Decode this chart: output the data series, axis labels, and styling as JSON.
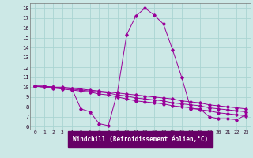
{
  "xlabel": "Windchill (Refroidissement éolien,°C)",
  "background_color": "#cce8e6",
  "grid_color": "#aad4d2",
  "line_color": "#990099",
  "xlabel_bg": "#660066",
  "xlabel_fg": "#ffffff",
  "xlim": [
    -0.5,
    23.5
  ],
  "ylim": [
    5.7,
    18.5
  ],
  "yticks": [
    6,
    7,
    8,
    9,
    10,
    11,
    12,
    13,
    14,
    15,
    16,
    17,
    18
  ],
  "xticks": [
    0,
    1,
    2,
    3,
    4,
    5,
    6,
    7,
    8,
    9,
    10,
    11,
    12,
    13,
    14,
    15,
    16,
    17,
    18,
    19,
    20,
    21,
    22,
    23
  ],
  "curve1_x": [
    0,
    1,
    2,
    3,
    4,
    5,
    6,
    7,
    8,
    9,
    10,
    11,
    12,
    13,
    14,
    15,
    16,
    17,
    18,
    19,
    20,
    21,
    22,
    23
  ],
  "curve1_y": [
    10.1,
    10.1,
    10.0,
    10.0,
    9.9,
    7.8,
    7.5,
    6.3,
    6.1,
    9.5,
    15.3,
    17.2,
    18.0,
    17.3,
    16.4,
    13.8,
    11.0,
    7.8,
    7.8,
    7.0,
    6.8,
    6.8,
    6.7,
    7.2
  ],
  "curve2_x": [
    0,
    1,
    2,
    3,
    4,
    5,
    6,
    7,
    8,
    9,
    10,
    11,
    12,
    13,
    14,
    15,
    16,
    17,
    18,
    19,
    20,
    21,
    22,
    23
  ],
  "curve2_y": [
    10.1,
    10.1,
    10.0,
    9.9,
    9.9,
    9.8,
    9.7,
    9.6,
    9.5,
    9.4,
    9.3,
    9.2,
    9.1,
    9.0,
    8.9,
    8.8,
    8.6,
    8.5,
    8.4,
    8.2,
    8.1,
    8.0,
    7.9,
    7.8
  ],
  "curve3_x": [
    0,
    1,
    2,
    3,
    4,
    5,
    6,
    7,
    8,
    9,
    10,
    11,
    12,
    13,
    14,
    15,
    16,
    17,
    18,
    19,
    20,
    21,
    22,
    23
  ],
  "curve3_y": [
    10.1,
    10.0,
    10.0,
    9.9,
    9.8,
    9.7,
    9.6,
    9.5,
    9.4,
    9.2,
    9.1,
    8.9,
    8.8,
    8.7,
    8.6,
    8.4,
    8.3,
    8.2,
    8.1,
    7.9,
    7.8,
    7.7,
    7.6,
    7.5
  ],
  "curve4_x": [
    0,
    1,
    2,
    3,
    4,
    5,
    6,
    7,
    8,
    9,
    10,
    11,
    12,
    13,
    14,
    15,
    16,
    17,
    18,
    19,
    20,
    21,
    22,
    23
  ],
  "curve4_y": [
    10.1,
    10.0,
    9.9,
    9.8,
    9.7,
    9.6,
    9.5,
    9.3,
    9.2,
    9.0,
    8.8,
    8.6,
    8.5,
    8.4,
    8.3,
    8.1,
    8.0,
    7.9,
    7.7,
    7.6,
    7.4,
    7.3,
    7.2,
    7.1
  ]
}
